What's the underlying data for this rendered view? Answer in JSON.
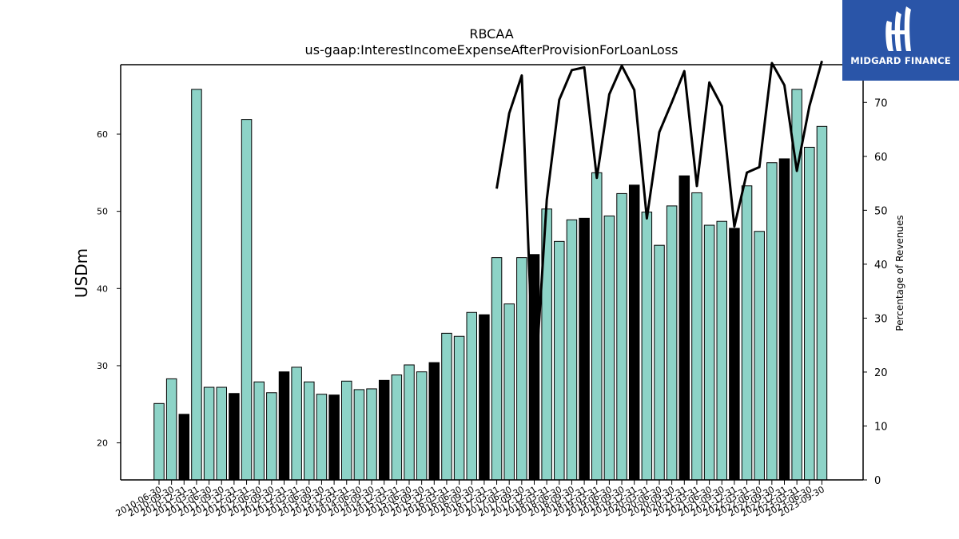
{
  "chart_data": {
    "type": "bar",
    "title": "RBCAA",
    "subtitle": "us-gaap:InterestIncomeExpenseAfterProvisionForLoanLoss",
    "ylabel": "USDm",
    "y2label": "Percentage of Revenues",
    "ylim": [
      15.2,
      69
    ],
    "y2lim": [
      0,
      77
    ],
    "yticks": [
      20,
      30,
      40,
      50,
      60
    ],
    "y2ticks": [
      0,
      10,
      20,
      30,
      40,
      50,
      60,
      70
    ],
    "colors": {
      "bar": "#8dd3c7",
      "highlight": "#000000",
      "edge": "#000000",
      "line": "#000000"
    },
    "categories": [
      "2010-06-30",
      "2010-09-30",
      "2010-12-31",
      "2011-03-31",
      "2011-06-30",
      "2011-09-30",
      "2011-12-31",
      "2012-03-31",
      "2012-06-30",
      "2012-09-30",
      "2012-12-31",
      "2013-03-31",
      "2013-06-30",
      "2013-09-30",
      "2013-12-31",
      "2014-03-31",
      "2014-06-30",
      "2014-09-30",
      "2014-12-31",
      "2015-03-31",
      "2015-06-30",
      "2015-09-30",
      "2015-12-31",
      "2016-03-31",
      "2016-06-30",
      "2016-09-30",
      "2016-12-31",
      "2017-03-31",
      "2017-06-30",
      "2017-09-30",
      "2017-12-31",
      "2018-03-31",
      "2018-06-30",
      "2018-09-30",
      "2018-12-31",
      "2019-03-31",
      "2019-06-30",
      "2019-09-30",
      "2019-12-31",
      "2020-03-31",
      "2020-06-30",
      "2020-09-30",
      "2020-12-31",
      "2021-03-31",
      "2021-06-30",
      "2021-09-30",
      "2021-12-31",
      "2022-03-31",
      "2022-06-30",
      "2022-09-30",
      "2022-12-31",
      "2023-03-31",
      "2023-06-30",
      "2023-09-30"
    ],
    "series": [
      {
        "values": [
          25.1,
          28.3,
          23.7,
          65.8,
          27.2,
          27.2,
          26.4,
          61.9,
          27.9,
          26.5,
          29.2,
          29.8,
          27.9,
          26.3,
          26.2,
          28.0,
          26.9,
          27.0,
          28.1,
          28.8,
          30.1,
          29.2,
          30.4,
          34.2,
          33.8,
          36.9,
          36.6,
          44.0,
          38.0,
          44.0,
          44.4,
          50.3,
          46.1,
          48.9,
          49.1,
          55.0,
          49.4,
          52.3,
          53.4,
          49.9,
          45.6,
          50.7,
          54.6,
          52.4,
          48.2,
          48.7,
          47.8,
          53.3,
          47.4,
          56.3,
          56.8,
          65.8,
          58.3,
          61.0
        ],
        "highlight": [
          false,
          false,
          true,
          false,
          false,
          false,
          true,
          false,
          false,
          false,
          true,
          false,
          false,
          false,
          true,
          false,
          false,
          false,
          true,
          false,
          false,
          false,
          true,
          false,
          false,
          false,
          true,
          false,
          false,
          false,
          true,
          false,
          false,
          false,
          true,
          false,
          false,
          false,
          true,
          false,
          false,
          false,
          true,
          false,
          false,
          false,
          true,
          false,
          false,
          false,
          true,
          false,
          false,
          false
        ]
      }
    ],
    "line_series": {
      "axis": "right",
      "values": [
        null,
        null,
        null,
        null,
        null,
        null,
        null,
        null,
        null,
        null,
        null,
        null,
        null,
        null,
        null,
        null,
        null,
        null,
        null,
        null,
        null,
        null,
        null,
        null,
        null,
        null,
        null,
        54.0,
        68.0,
        75.0,
        15.0,
        52.0,
        70.5,
        76.0,
        76.5,
        56.0,
        71.5,
        76.8,
        72.3,
        48.5,
        64.5,
        70.0,
        75.8,
        54.5,
        73.7,
        69.3,
        47.0,
        57.0,
        58.0,
        77.3,
        73.2,
        57.3,
        69.3,
        77.7
      ]
    }
  },
  "branding": {
    "logo_text": "MIDGARD FINANCE"
  }
}
